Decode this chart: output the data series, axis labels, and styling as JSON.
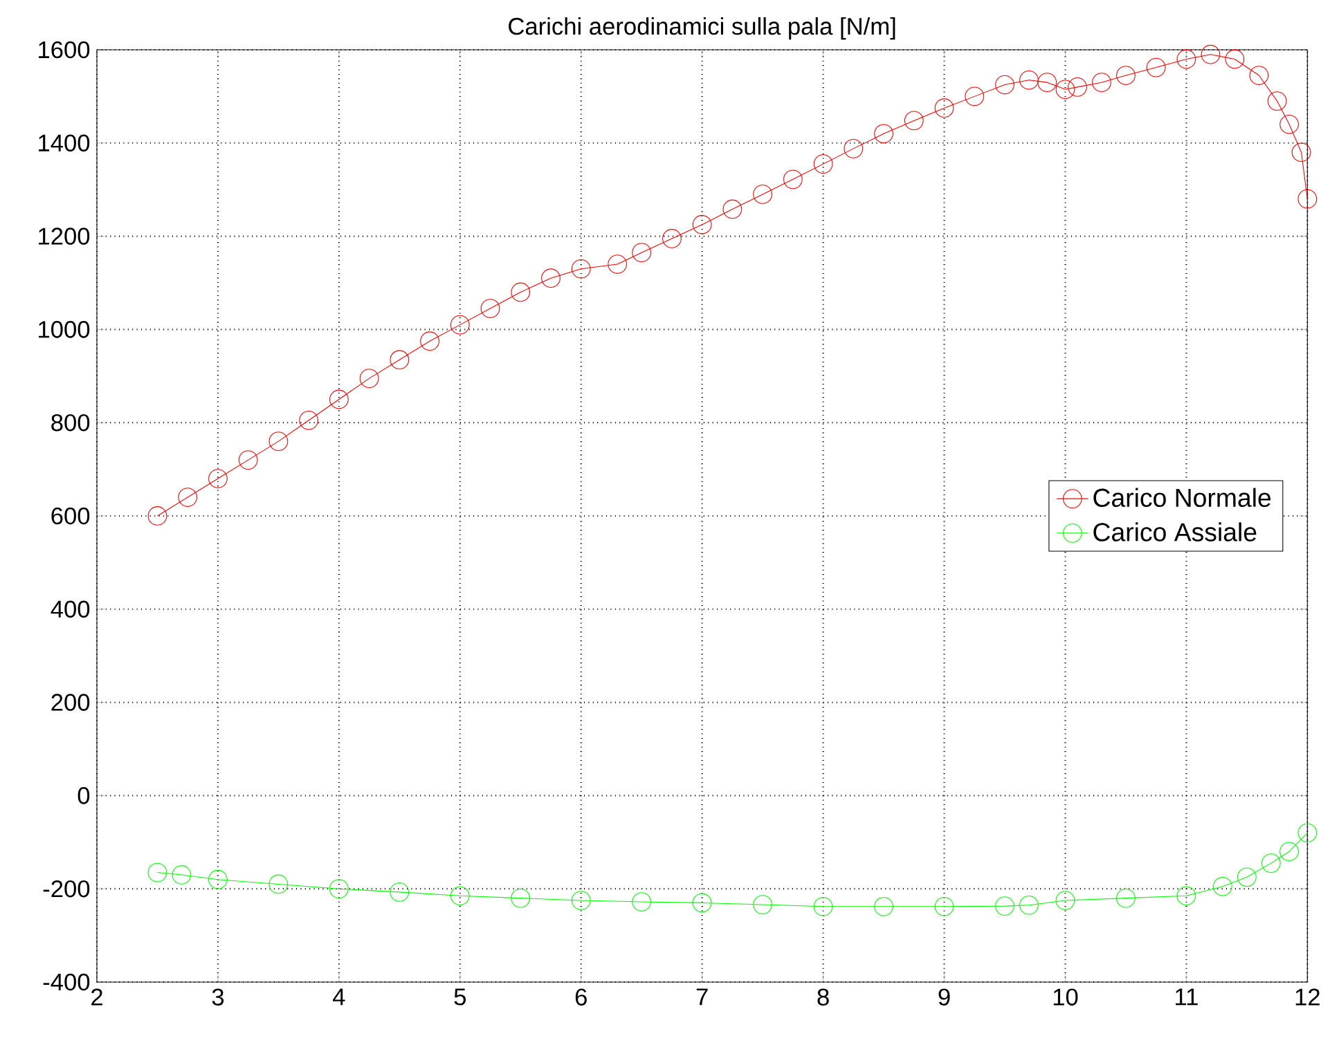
{
  "chart_data": {
    "type": "line",
    "title": "Carichi aerodinamici sulla pala  [N/m]",
    "xlim": [
      2,
      12
    ],
    "ylim": [
      -400,
      1600
    ],
    "xticks": [
      2,
      3,
      4,
      5,
      6,
      7,
      8,
      9,
      10,
      11,
      12
    ],
    "yticks": [
      -400,
      -200,
      0,
      200,
      400,
      600,
      800,
      1000,
      1200,
      1400,
      1600
    ],
    "grid": true,
    "legend": "right",
    "marker": "circle",
    "line_style": "solid",
    "series": [
      {
        "name": "Carico Normale",
        "color": "#ff0000",
        "x": [
          2.5,
          2.75,
          3,
          3.25,
          3.5,
          3.75,
          4,
          4.25,
          4.5,
          4.75,
          5,
          5.25,
          5.5,
          5.75,
          6,
          6.3,
          6.5,
          6.75,
          7,
          7.25,
          7.5,
          7.75,
          8,
          8.25,
          8.5,
          8.75,
          9,
          9.25,
          9.5,
          9.7,
          9.85,
          10,
          10.1,
          10.3,
          10.5,
          10.75,
          11,
          11.2,
          11.4,
          11.6,
          11.75,
          11.85,
          11.95,
          12
        ],
        "values": [
          600,
          640,
          680,
          720,
          760,
          805,
          850,
          895,
          935,
          975,
          1010,
          1045,
          1080,
          1110,
          1130,
          1140,
          1165,
          1195,
          1225,
          1258,
          1290,
          1322,
          1355,
          1388,
          1420,
          1448,
          1475,
          1500,
          1525,
          1535,
          1530,
          1515,
          1520,
          1530,
          1545,
          1562,
          1580,
          1590,
          1580,
          1545,
          1490,
          1440,
          1380,
          1280
        ]
      },
      {
        "name": "Carico Assiale",
        "color": "#00ff00",
        "x": [
          2.5,
          2.7,
          3,
          3.5,
          4,
          4.5,
          5,
          5.5,
          6,
          6.5,
          7,
          7.5,
          8,
          8.5,
          9,
          9.5,
          9.7,
          10,
          10.5,
          11,
          11.3,
          11.5,
          11.7,
          11.85,
          12
        ],
        "values": [
          -165,
          -170,
          -180,
          -190,
          -200,
          -207,
          -215,
          -220,
          -225,
          -228,
          -230,
          -234,
          -238,
          -238,
          -238,
          -237,
          -235,
          -225,
          -220,
          -215,
          -195,
          -175,
          -145,
          -120,
          -80
        ]
      }
    ]
  }
}
